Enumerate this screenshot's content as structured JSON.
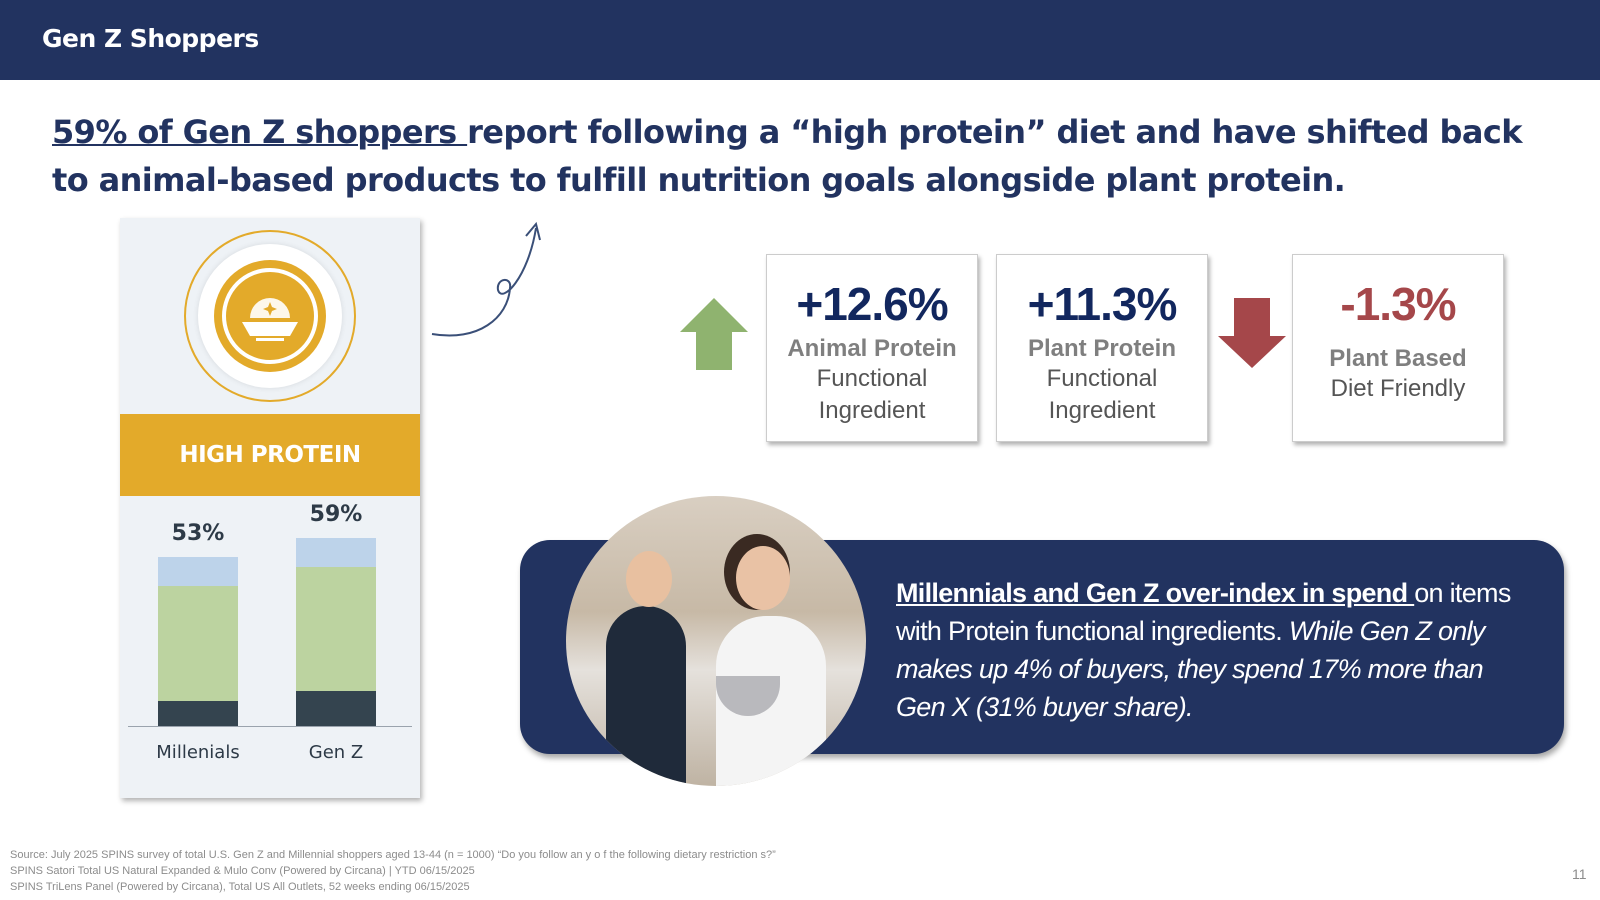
{
  "header": {
    "title": "Gen Z Shoppers"
  },
  "headline": {
    "underlined": "59% of Gen Z shoppers ",
    "rest": "report following a “high protein” diet and have shifted back to animal-based products to fulfill nutrition goals alongside plant protein."
  },
  "card": {
    "band_label": "HIGH PROTEIN",
    "icon": "protein-bowl-icon"
  },
  "chart_data": {
    "type": "bar",
    "stacked": true,
    "categories": [
      "Millenials",
      "Gen Z"
    ],
    "totals_labels": [
      "53%",
      "59%"
    ],
    "totals": [
      53,
      59
    ],
    "series": [
      {
        "name": "segment-1",
        "color": "#34444f",
        "values": [
          8,
          11
        ]
      },
      {
        "name": "segment-2",
        "color": "#bcd3a0",
        "values": [
          36,
          39
        ]
      },
      {
        "name": "segment-3",
        "color": "#bdd3ea",
        "values": [
          9,
          9
        ]
      }
    ],
    "ylim": [
      0,
      70
    ],
    "grid": false
  },
  "metrics": [
    {
      "value": "+12.6%",
      "bold": "Animal Protein",
      "sub1": "Functional",
      "sub2": "Ingredient",
      "color": "#12275e"
    },
    {
      "value": "+11.3%",
      "bold": "Plant Protein",
      "sub1": "Functional",
      "sub2": "Ingredient",
      "color": "#12275e"
    },
    {
      "value": "-1.3%",
      "bold": "Plant Based",
      "sub1": "Diet Friendly",
      "sub2": "",
      "color": "#a5474a"
    }
  ],
  "arrows": {
    "up_color": "#8fb36f",
    "down_color": "#a5474a"
  },
  "banner": {
    "underlined": "Millennials and Gen Z over-index in spend ",
    "normal": "on items with Protein functional ingredients. ",
    "italic": "While Gen Z only makes up 4% of buyers, they spend 17% more than Gen X (31% buyer share)."
  },
  "source": [
    "Source:  July 2025 SPINS survey of total U.S. Gen Z and Millennial shoppers aged 13-44 (n = 1000) “Do you follow an y o f the following dietary restriction s?”",
    "SPINS Satori Total US Natural Expanded &  Mulo Conv (Powered  by Circana) | YTD 06/15/2025",
    "SPINS TriLens Panel (Powered by Circana), Total US All Outlets, 52 weeks  ending 06/15/2025"
  ],
  "page_number": "11"
}
